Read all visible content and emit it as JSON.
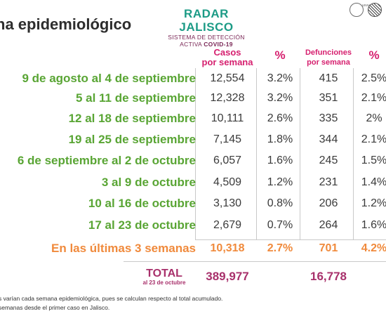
{
  "page_title": "na epidemiológico",
  "brand": {
    "name": "RADAR JALISCO",
    "line1": "SISTEMA DE DETECCIÓN",
    "line2_prefix": "ACTIVA ",
    "line2_suffix": "COVID-19",
    "seal_text": "UNIV. GU"
  },
  "headers": {
    "cases_line1": "Casos",
    "cases_line2": "por semana",
    "pct": "%",
    "deaths_line1": "Defunciones",
    "deaths_line2": "por semana",
    "pct2": "%"
  },
  "rows": [
    {
      "period": "9 de agosto al 4 de septiembre",
      "cases": "12,554",
      "cases_pct": "3.2%",
      "deaths": "415",
      "deaths_pct": "2.5%"
    },
    {
      "period": "5 al 11 de septiembre",
      "cases": "12,328",
      "cases_pct": "3.2%",
      "deaths": "351",
      "deaths_pct": "2.1%"
    },
    {
      "period": "12 al 18 de septiembre",
      "cases": "10,111",
      "cases_pct": "2.6%",
      "deaths": "335",
      "deaths_pct": "2%"
    },
    {
      "period": "19 al 25 de septiembre",
      "cases": "7,145",
      "cases_pct": "1.8%",
      "deaths": "344",
      "deaths_pct": "2.1%"
    },
    {
      "period": "6 de septiembre al 2 de octubre",
      "cases": "6,057",
      "cases_pct": "1.6%",
      "deaths": "245",
      "deaths_pct": "1.5%"
    },
    {
      "period": "3 al 9 de octubre",
      "cases": "4,509",
      "cases_pct": "1.2%",
      "deaths": "231",
      "deaths_pct": "1.4%"
    },
    {
      "period": "10 al 16 de octubre",
      "cases": "3,130",
      "cases_pct": "0.8%",
      "deaths": "206",
      "deaths_pct": "1.2%"
    },
    {
      "period": "17 al 23 de octubre",
      "cases": "2,679",
      "cases_pct": "0.7%",
      "deaths": "264",
      "deaths_pct": "1.6%"
    }
  ],
  "summary": {
    "period": "En las últimas 3 semanas",
    "cases": "10,318",
    "cases_pct": "2.7%",
    "deaths": "701",
    "deaths_pct": "4.2%"
  },
  "total": {
    "label": "TOTAL",
    "sublabel": "al 23 de octubre",
    "cases": "389,977",
    "deaths": "16,778"
  },
  "footnotes": {
    "line1": "s varían cada semana epidemiológica, pues se calculan respecto al total acumulado.",
    "line2": "semanas desde el primer caso en Jalisco."
  },
  "colors": {
    "accent_pink": "#d6206f",
    "period_green": "#59a534",
    "summary_orange": "#f08a3c",
    "total_purple": "#a8306b",
    "brand_teal": "#1c9b86"
  }
}
